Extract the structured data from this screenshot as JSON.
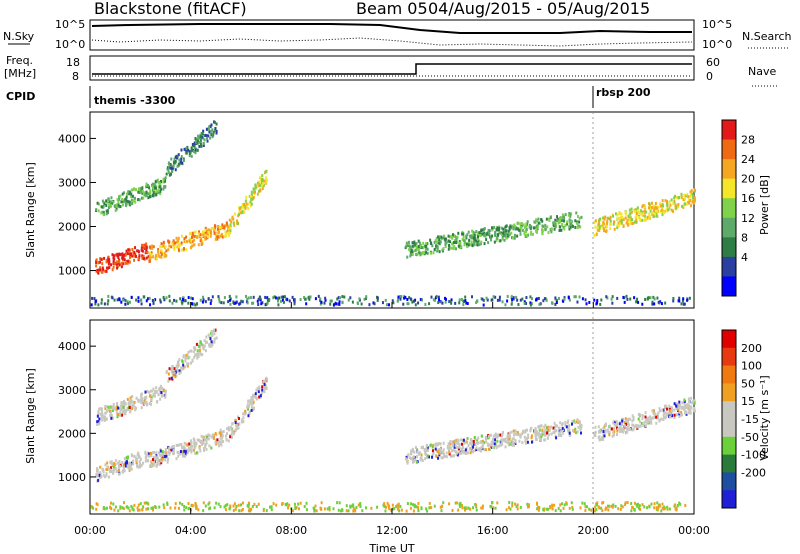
{
  "header": {
    "station": "Blackstone (fitACF)",
    "beam": "Beam 05",
    "dates": "04/Aug/2015 - 05/Aug/2015"
  },
  "panels": {
    "nsky_label": "N.Sky",
    "nsearch_label": "N.Search",
    "nsky_top": "10^5",
    "nsky_bottom": "10^0",
    "freq_label": "Freq.",
    "freq_unit": "[MHz]",
    "freq_ticks": [
      "18",
      "8"
    ],
    "nave_ticks": [
      "60",
      "0"
    ],
    "nave_label": "Nave",
    "cpid_label": "CPID",
    "cpid_1": "themis -3300",
    "cpid_2": "rbsp 200"
  },
  "colors": {
    "power_scale": [
      "#0000ff",
      "#2b3fa0",
      "#2e7d46",
      "#5daa6a",
      "#7fd24a",
      "#f5e62a",
      "#f5a623",
      "#f06a14",
      "#e21a1a"
    ],
    "velocity_scale": [
      "#1f1fd6",
      "#1e4ea0",
      "#2a7a3a",
      "#6ad13a",
      "#c8c8c0",
      "#c8c8c0",
      "#f0a020",
      "#f07a10",
      "#e83a10",
      "#e00000"
    ]
  },
  "chart_data": [
    {
      "type": "heatmap",
      "name": "power",
      "ylabel": "Slant Range [km]",
      "yticks": [
        "4000",
        "3000",
        "2000",
        "1000"
      ],
      "ylim": [
        150,
        4600
      ],
      "colorbar_label": "Power [dB]",
      "colorbar_ticks": [
        "28",
        "24",
        "20",
        "16",
        "12",
        "8",
        "4"
      ],
      "bands": [
        {
          "x_start_hr": 0.2,
          "x_end_hr": 2.3,
          "range_km": [
            1100,
            1500
          ],
          "level": 8
        },
        {
          "x_start_hr": 2.3,
          "x_end_hr": 5.5,
          "range_km": [
            1400,
            2000
          ],
          "level": 6
        },
        {
          "x_start_hr": 5.5,
          "x_end_hr": 7.0,
          "range_km": [
            2000,
            3200
          ],
          "level": 5
        },
        {
          "x_start_hr": 0.2,
          "x_end_hr": 3.0,
          "range_km": [
            2400,
            3000
          ],
          "level": 3
        },
        {
          "x_start_hr": 3.0,
          "x_end_hr": 5.0,
          "range_km": [
            3300,
            4300
          ],
          "level": 2
        },
        {
          "x_start_hr": 12.5,
          "x_end_hr": 19.5,
          "range_km": [
            1500,
            2200
          ],
          "level": 3
        },
        {
          "x_start_hr": 20.0,
          "x_end_hr": 24.0,
          "range_km": [
            2000,
            2700
          ],
          "level": 5
        }
      ]
    },
    {
      "type": "heatmap",
      "name": "velocity",
      "ylabel": "Slant Range [km]",
      "yticks": [
        "4000",
        "3000",
        "2000",
        "1000"
      ],
      "ylim": [
        150,
        4600
      ],
      "xlabel": "Time UT",
      "xticks": [
        "00:00",
        "04:00",
        "08:00",
        "12:00",
        "16:00",
        "20:00",
        "00:00"
      ],
      "xlim_hr": [
        0,
        24
      ],
      "colorbar_label": "Velocity [m s⁻¹]",
      "colorbar_ticks": [
        "200",
        "100",
        "50",
        "15",
        "-15",
        "-50",
        "-100",
        "-200"
      ]
    }
  ]
}
